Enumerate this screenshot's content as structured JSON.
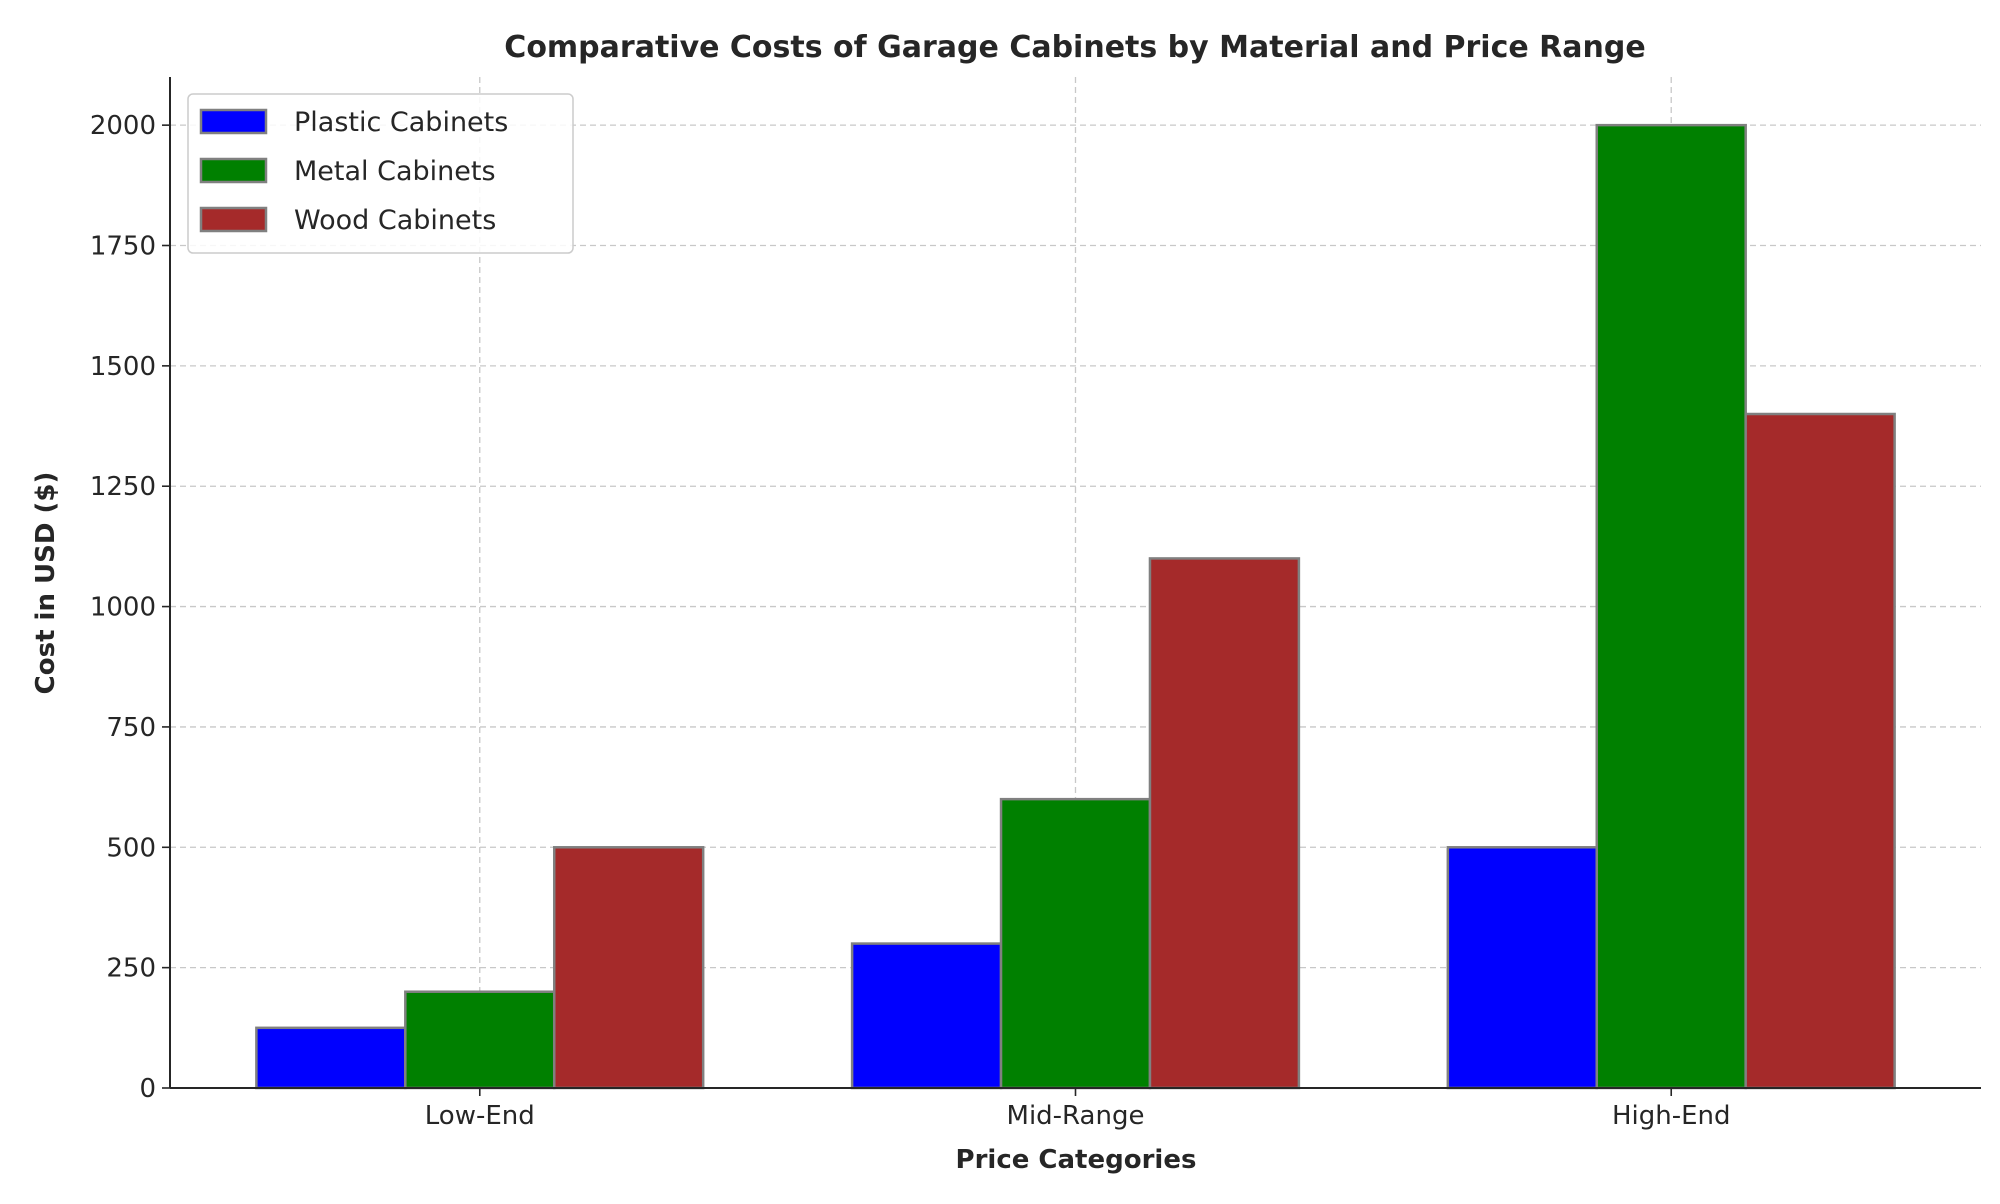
{
  "chart_data": {
    "type": "bar",
    "title": "Comparative Costs of Garage Cabinets by Material and Price Range",
    "xlabel": "Price Categories",
    "ylabel": "Cost in USD ($)",
    "categories": [
      "Low-End",
      "Mid-Range",
      "High-End"
    ],
    "series": [
      {
        "name": "Plastic Cabinets",
        "values": [
          125,
          300,
          500
        ],
        "color": "#0000ff"
      },
      {
        "name": "Metal Cabinets",
        "values": [
          200,
          600,
          2000
        ],
        "color": "#008000"
      },
      {
        "name": "Wood Cabinets",
        "values": [
          500,
          1100,
          1400
        ],
        "color": "#a52a2a"
      }
    ],
    "ylim": [
      0,
      2100
    ],
    "yticks": [
      0,
      250,
      500,
      750,
      1000,
      1250,
      1500,
      1750,
      2000
    ],
    "grid": true,
    "grid_style": "dashed",
    "legend": "top-left",
    "bar_edge_color": "#808080"
  }
}
